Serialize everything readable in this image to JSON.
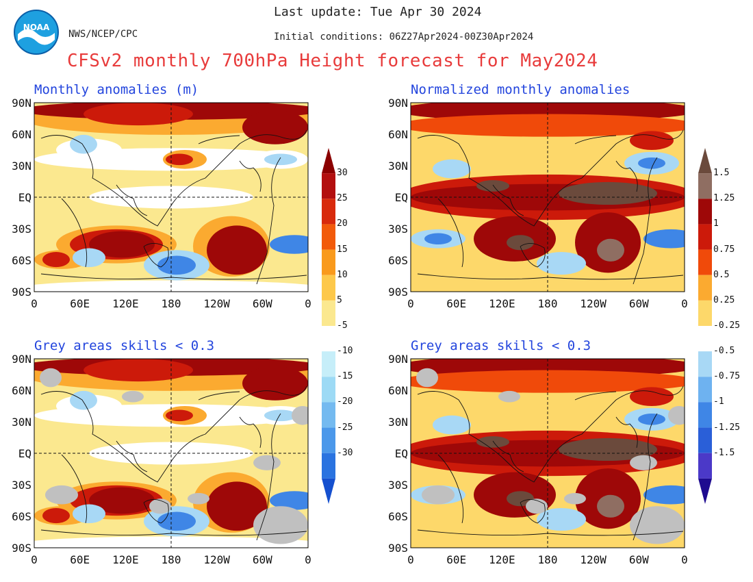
{
  "header": {
    "last_update": "Last update: Tue Apr 30 2024",
    "agency": "NWS/NCEP/CPC",
    "initial_conditions": "Initial conditions: 06Z27Apr2024-00Z30Apr2024",
    "title": "CFSv2 monthly 700hPa Height forecast for May2024"
  },
  "panels": [
    {
      "id": "tl",
      "title": "Monthly anomalies (m)",
      "type": "anomaly",
      "grey": false
    },
    {
      "id": "tr",
      "title": "Normalized monthly anomalies",
      "type": "normalized",
      "grey": false
    },
    {
      "id": "bl",
      "title": "Grey areas skills < 0.3",
      "type": "anomaly",
      "grey": true
    },
    {
      "id": "br",
      "title": "Grey areas skills < 0.3",
      "type": "normalized",
      "grey": true
    }
  ],
  "axes": {
    "lat_labels": [
      "90N",
      "60N",
      "30N",
      "EQ",
      "30S",
      "60S",
      "90S"
    ],
    "lon_labels": [
      "0",
      "60E",
      "120E",
      "180",
      "120W",
      "60W",
      "0"
    ]
  },
  "colorbars": {
    "anomaly": {
      "labels": [
        "30",
        "25",
        "20",
        "15",
        "10",
        "5",
        "-5",
        "-10",
        "-15",
        "-20",
        "-25",
        "-30"
      ],
      "colors": [
        "#8b0000",
        "#b30f0f",
        "#d82a0c",
        "#f25a0a",
        "#f99a1c",
        "#fdc84a",
        "#fbe88f",
        "#ffffff",
        "#c6eef9",
        "#9ddaf5",
        "#74baf0",
        "#4b98ea",
        "#2a73e0",
        "#1550cf"
      ]
    },
    "normalized": {
      "labels": [
        "1.5",
        "1.25",
        "1",
        "0.75",
        "0.5",
        "0.25",
        "-0.25",
        "-0.5",
        "-0.75",
        "-1",
        "-1.25",
        "-1.5"
      ],
      "colors": [
        "#6b4a3c",
        "#8f6e62",
        "#9e0808",
        "#cc1a0a",
        "#f04a0a",
        "#fbaa30",
        "#fdd86a",
        "#ffffff",
        "#a8d8f5",
        "#6eb2f0",
        "#3f86e6",
        "#2a5fd8",
        "#4b39c8",
        "#1e0b90"
      ]
    }
  },
  "palette": {
    "deep_red": "#9e0808",
    "red": "#cc1a0a",
    "orange_red": "#f04a0a",
    "orange": "#fbaa30",
    "light_orange": "#fdd86a",
    "pale_yellow": "#fbe88f",
    "light_blue": "#a8d8f5",
    "blue": "#3f86e6",
    "brown": "#6b4a3c",
    "grey": "#c0c0c0",
    "title_red": "#e83b3b",
    "title_blue": "#2244dd"
  }
}
